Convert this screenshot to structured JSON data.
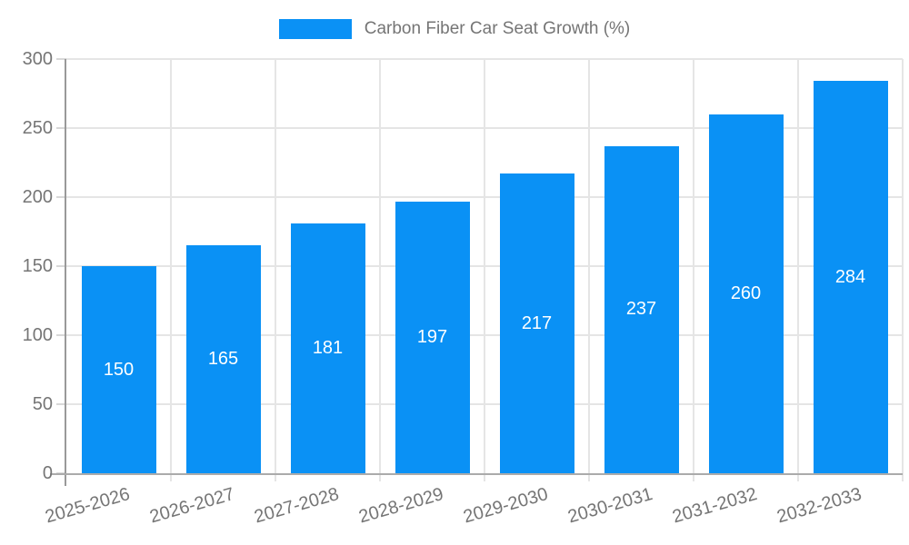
{
  "legend": {
    "label": "Carbon Fiber Car Seat Growth (%)"
  },
  "chart_data": {
    "type": "bar",
    "title": "Carbon Fiber Car Seat Growth (%)",
    "categories": [
      "2025-2026",
      "2026-2027",
      "2027-2028",
      "2028-2029",
      "2029-2030",
      "2030-2031",
      "2031-2032",
      "2032-2033"
    ],
    "values": [
      150,
      165,
      181,
      197,
      217,
      237,
      260,
      284
    ],
    "xlabel": "",
    "ylabel": "",
    "ylim": [
      0,
      300
    ],
    "yticks": [
      0,
      50,
      100,
      150,
      200,
      250,
      300
    ],
    "grid": true,
    "legend_position": "top-center",
    "x_label_rotation_deg": -16,
    "value_labels_inside_bars": true,
    "colors": {
      "bar": "#0A91F5",
      "value_label": "#FFFFFF",
      "axis_text": "#757575",
      "gridline": "#E5E5E5",
      "y_axis_line": "#999999",
      "x_axis_line": "#ABABAB",
      "tick": "#D8D8D8",
      "background": "#FFFFFF"
    }
  }
}
